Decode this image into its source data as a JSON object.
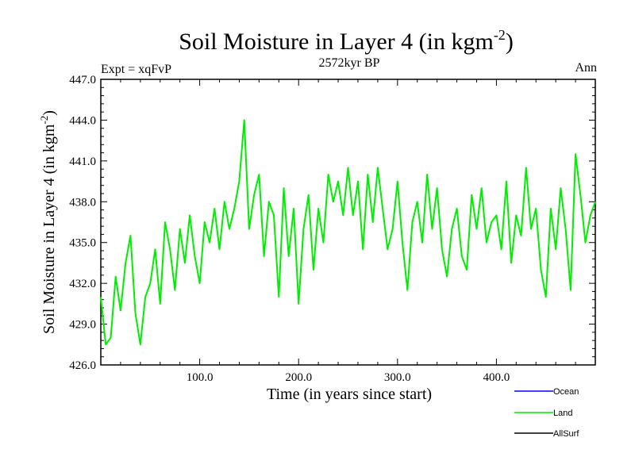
{
  "chart_data": {
    "type": "line",
    "title": "Soil Moisture in Layer 4 (in kgm",
    "title_sup": "-2",
    "title_close": ")",
    "subtitle": "2572kyr BP",
    "left_note": "Expt = xqFvP",
    "right_note": "Ann",
    "xlabel": "Time (in years since start)",
    "ylabel": "Soil Moisture in Layer 4 (in kgm",
    "ylabel_sup": "-2",
    "ylabel_close": ")",
    "xlim": [
      0,
      500
    ],
    "ylim": [
      426.0,
      447.0
    ],
    "x_ticks": [
      {
        "value": 100,
        "label": "100.0"
      },
      {
        "value": 200,
        "label": "200.0"
      },
      {
        "value": 300,
        "label": "300.0"
      },
      {
        "value": 400,
        "label": "400.0"
      }
    ],
    "y_ticks": [
      {
        "value": 426,
        "label": "426.0"
      },
      {
        "value": 429,
        "label": "429.0"
      },
      {
        "value": 432,
        "label": "432.0"
      },
      {
        "value": 435,
        "label": "435.0"
      },
      {
        "value": 438,
        "label": "438.0"
      },
      {
        "value": 441,
        "label": "441.0"
      },
      {
        "value": 444,
        "label": "444.0"
      },
      {
        "value": 447,
        "label": "447.0"
      }
    ],
    "legend_placement": "bottom-right",
    "series": [
      {
        "name": "Ocean",
        "color": "#0000ff",
        "x": [],
        "values": []
      },
      {
        "name": "Land",
        "color": "#00ee00",
        "x": [
          0,
          5,
          10,
          15,
          20,
          25,
          30,
          35,
          40,
          45,
          50,
          55,
          60,
          65,
          70,
          75,
          80,
          85,
          90,
          95,
          100,
          105,
          110,
          115,
          120,
          125,
          130,
          135,
          140,
          145,
          150,
          155,
          160,
          165,
          170,
          175,
          180,
          185,
          190,
          195,
          200,
          205,
          210,
          215,
          220,
          225,
          230,
          235,
          240,
          245,
          250,
          255,
          260,
          265,
          270,
          275,
          280,
          285,
          290,
          295,
          300,
          305,
          310,
          315,
          320,
          325,
          330,
          335,
          340,
          345,
          350,
          355,
          360,
          365,
          370,
          375,
          380,
          385,
          390,
          395,
          400,
          405,
          410,
          415,
          420,
          425,
          430,
          435,
          440,
          445,
          450,
          455,
          460,
          465,
          470,
          475,
          480,
          485,
          490,
          495,
          500
        ],
        "values": [
          431.0,
          427.5,
          428.0,
          432.5,
          430.0,
          433.5,
          435.5,
          429.8,
          427.5,
          431.0,
          432.0,
          434.5,
          430.5,
          436.5,
          434.5,
          431.5,
          436.0,
          433.5,
          437.0,
          434.0,
          432.0,
          436.5,
          435.0,
          437.5,
          434.5,
          438.0,
          436.0,
          437.5,
          439.5,
          444.0,
          436.0,
          438.5,
          440.0,
          434.0,
          438.0,
          437.0,
          431.0,
          439.0,
          434.0,
          437.5,
          430.5,
          436.0,
          438.5,
          433.0,
          437.5,
          435.0,
          440.0,
          438.0,
          439.5,
          437.0,
          440.5,
          437.0,
          439.5,
          434.5,
          440.0,
          436.5,
          440.5,
          437.5,
          434.5,
          436.0,
          439.5,
          435.0,
          431.5,
          436.5,
          438.0,
          435.0,
          440.0,
          436.0,
          439.0,
          434.5,
          432.5,
          436.0,
          437.5,
          434.0,
          433.0,
          438.5,
          436.0,
          439.0,
          435.0,
          436.5,
          437.0,
          434.5,
          439.5,
          433.5,
          437.0,
          435.5,
          440.5,
          436.0,
          437.5,
          433.0,
          431.0,
          437.5,
          434.5,
          439.0,
          436.0,
          431.5,
          441.5,
          438.5,
          435.0,
          437.0,
          438.0
        ]
      },
      {
        "name": "AllSurf",
        "color": "#000000",
        "x": [],
        "values": []
      }
    ]
  }
}
